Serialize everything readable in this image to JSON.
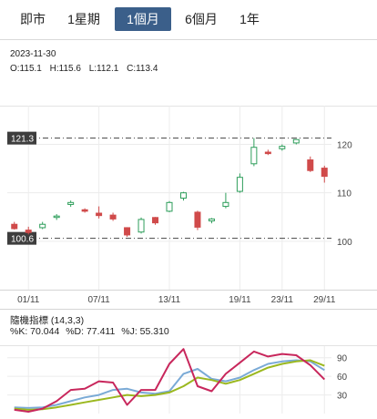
{
  "tabs": [
    {
      "label": "即市",
      "active": false
    },
    {
      "label": "1星期",
      "active": false
    },
    {
      "label": "1個月",
      "active": true
    },
    {
      "label": "6個月",
      "active": false
    },
    {
      "label": "1年",
      "active": false
    }
  ],
  "ohlc": {
    "date": "2023-11-30",
    "open": "O:115.1",
    "high": "H:115.6",
    "low": "L:112.1",
    "close": "C:113.4"
  },
  "indicator": {
    "title": "隨機指標 (14,3,3)",
    "k": "%K: 70.044",
    "d": "%D: 77.411",
    "j": "%J: 55.310"
  },
  "colors": {
    "up": "#2e9e5b",
    "down": "#d04a4a",
    "k_line": "#7aaad6",
    "d_line": "#9bb81f",
    "j_line": "#c8275c",
    "active_tab": "#3b5f8a"
  },
  "chart_data": [
    {
      "type": "candlestick",
      "title": "",
      "ylim": [
        90,
        128
      ],
      "y_ticks": [
        "100",
        "110",
        "120"
      ],
      "x_tick_labels": [
        "01/11",
        "07/11",
        "13/11",
        "19/11",
        "23/11",
        "29/11"
      ],
      "reference_lines": [
        {
          "label": "121.3",
          "value": 121.3
        },
        {
          "label": "100.6",
          "value": 100.6
        }
      ],
      "candles": [
        {
          "date": "2023-10-31",
          "open": 103.5,
          "high": 104.0,
          "low": 102.4,
          "close": 102.6
        },
        {
          "date": "2023-11-01",
          "open": 102.3,
          "high": 103.0,
          "low": 101.4,
          "close": 101.8
        },
        {
          "date": "2023-11-02",
          "open": 102.8,
          "high": 104.0,
          "low": 102.5,
          "close": 103.5
        },
        {
          "date": "2023-11-03",
          "open": 105.0,
          "high": 105.6,
          "low": 104.4,
          "close": 105.2
        },
        {
          "date": "2023-11-06",
          "open": 107.6,
          "high": 108.4,
          "low": 107.1,
          "close": 108.0
        },
        {
          "date": "2023-11-07",
          "open": 106.5,
          "high": 106.8,
          "low": 105.9,
          "close": 106.2
        },
        {
          "date": "2023-11-08",
          "open": 105.8,
          "high": 107.2,
          "low": 104.7,
          "close": 105.3
        },
        {
          "date": "2023-11-09",
          "open": 105.4,
          "high": 105.9,
          "low": 104.2,
          "close": 104.6
        },
        {
          "date": "2023-11-10",
          "open": 102.8,
          "high": 102.9,
          "low": 100.9,
          "close": 101.3
        },
        {
          "date": "2023-11-13",
          "open": 101.9,
          "high": 104.9,
          "low": 101.6,
          "close": 104.5
        },
        {
          "date": "2023-11-14",
          "open": 104.9,
          "high": 105.0,
          "low": 103.4,
          "close": 103.8
        },
        {
          "date": "2023-11-15",
          "open": 106.2,
          "high": 108.3,
          "low": 106.0,
          "close": 108.0
        },
        {
          "date": "2023-11-16",
          "open": 108.9,
          "high": 110.2,
          "low": 108.4,
          "close": 110.0
        },
        {
          "date": "2023-11-17",
          "open": 106.0,
          "high": 106.3,
          "low": 102.3,
          "close": 102.9
        },
        {
          "date": "2023-11-20",
          "open": 104.2,
          "high": 104.8,
          "low": 103.7,
          "close": 104.6
        },
        {
          "date": "2023-11-21",
          "open": 107.2,
          "high": 110.0,
          "low": 106.8,
          "close": 108.0
        },
        {
          "date": "2023-11-22",
          "open": 110.3,
          "high": 114.0,
          "low": 110.0,
          "close": 113.2
        },
        {
          "date": "2023-11-23",
          "open": 116.0,
          "high": 121.3,
          "low": 115.5,
          "close": 119.4
        },
        {
          "date": "2023-11-24",
          "open": 118.4,
          "high": 118.9,
          "low": 117.8,
          "close": 118.1
        },
        {
          "date": "2023-11-27",
          "open": 119.1,
          "high": 120.0,
          "low": 118.7,
          "close": 119.6
        },
        {
          "date": "2023-11-28",
          "open": 120.3,
          "high": 121.0,
          "low": 120.0,
          "close": 121.0
        },
        {
          "date": "2023-11-29",
          "open": 116.8,
          "high": 117.5,
          "low": 114.3,
          "close": 114.6
        },
        {
          "date": "2023-11-30",
          "open": 115.1,
          "high": 115.6,
          "low": 112.1,
          "close": 113.4
        }
      ]
    },
    {
      "type": "line",
      "title": "隨機指標 (14,3,3)",
      "ylim": [
        0,
        100
      ],
      "y_ticks": [
        "30",
        "60",
        "90"
      ],
      "series": [
        {
          "name": "%K",
          "values": [
            10,
            9,
            10,
            14,
            20,
            26,
            30,
            38,
            40,
            34,
            32,
            36,
            64,
            72,
            56,
            52,
            58,
            70,
            80,
            84,
            86,
            84,
            70
          ]
        },
        {
          "name": "%D",
          "values": [
            8,
            6,
            7,
            10,
            14,
            18,
            22,
            26,
            30,
            28,
            30,
            34,
            44,
            58,
            54,
            48,
            54,
            64,
            74,
            80,
            84,
            86,
            77
          ]
        },
        {
          "name": "%J",
          "values": [
            6,
            3,
            8,
            20,
            38,
            40,
            52,
            50,
            14,
            38,
            38,
            80,
            104,
            44,
            36,
            64,
            82,
            100,
            92,
            96,
            94,
            78,
            55
          ]
        }
      ]
    }
  ]
}
